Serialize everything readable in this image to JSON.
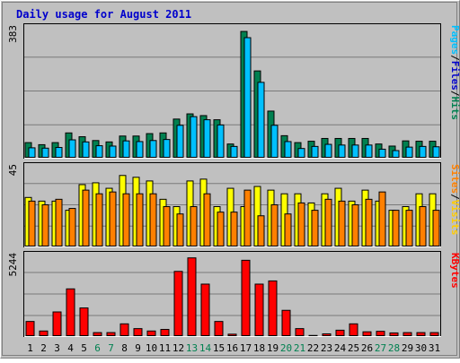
{
  "colors": {
    "background": "#c0c0c0",
    "frame_light": "#ffffff",
    "frame_dark": "#808080",
    "title": "#0000cc",
    "gridline": "#7a7a7a",
    "hits": "#008050",
    "files": "#00c0ff",
    "pages": "#00c0ff",
    "sites": "#ff8000",
    "visits": "#ffff00",
    "kbytes": "#ff0000",
    "weekday_label": "#000000",
    "weekend_label": "#008050"
  },
  "chart_data": {
    "type": "bar",
    "title": "Daily usage for August 2011",
    "x": [
      "1",
      "2",
      "3",
      "4",
      "5",
      "6",
      "7",
      "8",
      "9",
      "10",
      "11",
      "12",
      "13",
      "14",
      "15",
      "16",
      "17",
      "18",
      "19",
      "20",
      "21",
      "22",
      "23",
      "24",
      "25",
      "26",
      "27",
      "28",
      "29",
      "30",
      "31"
    ],
    "weekend_days": [
      "6",
      "7",
      "13",
      "14",
      "20",
      "21",
      "27",
      "28"
    ],
    "panels": [
      {
        "name": "top",
        "ymax_label": "383",
        "ymax": 383,
        "legend": [
          "Pages",
          "/",
          "Files",
          "/",
          "Hits"
        ],
        "legend_colors": [
          "#00c0ff",
          "#000000",
          "#0000cc",
          "#000000",
          "#008050"
        ],
        "series": [
          {
            "name": "Hits",
            "values": [
              45,
              39,
              45,
              73,
              62,
              51,
              47,
              64,
              64,
              71,
              73,
              113,
              128,
              123,
              111,
              41,
              366,
              252,
              136,
              65,
              45,
              49,
              57,
              57,
              57,
              57,
              41,
              35,
              50,
              49,
              49
            ]
          },
          {
            "name": "Files",
            "values": [
              30,
              29,
              31,
              53,
              47,
              36,
              35,
              50,
              48,
              51,
              54,
              95,
              120,
              111,
              96,
              34,
              348,
              219,
              95,
              48,
              28,
              34,
              40,
              38,
              38,
              38,
              26,
              22,
              32,
              34,
              33
            ]
          }
        ]
      },
      {
        "name": "middle",
        "ymax_label": "45",
        "ymax": 45,
        "legend": [
          "Sites",
          "/",
          "Visits"
        ],
        "legend_colors": [
          "#ff8000",
          "#000000",
          "#ffcc00"
        ],
        "series": [
          {
            "name": "Visits",
            "values": [
              27,
              25,
              25,
              20,
              34,
              35,
              32,
              39,
              38,
              36,
              26,
              22,
              36,
              37,
              22,
              32,
              22,
              33,
              31,
              29,
              29,
              24,
              29,
              32,
              25,
              31,
              25,
              20,
              22,
              29,
              29
            ]
          },
          {
            "name": "Sites",
            "values": [
              25,
              23,
              26,
              21,
              31,
              29,
              30,
              29,
              29,
              29,
              22,
              18,
              22,
              29,
              19,
              19,
              31,
              17,
              23,
              18,
              24,
              20,
              26,
              25,
              23,
              26,
              30,
              20,
              20,
              22,
              20
            ]
          }
        ]
      },
      {
        "name": "bottom",
        "ymax_label": "5244",
        "ymax": 5244,
        "legend": [
          "KBytes"
        ],
        "legend_colors": [
          "#ff0000"
        ],
        "series": [
          {
            "name": "KBytes",
            "values": [
              950,
              350,
              1550,
              3000,
              1800,
              250,
              250,
              800,
              500,
              350,
              450,
              4100,
              4950,
              3300,
              950,
              150,
              4800,
              3300,
              3500,
              1650,
              500,
              70,
              170,
              400,
              800,
              300,
              330,
              230,
              250,
              250,
              250
            ]
          }
        ]
      }
    ]
  }
}
